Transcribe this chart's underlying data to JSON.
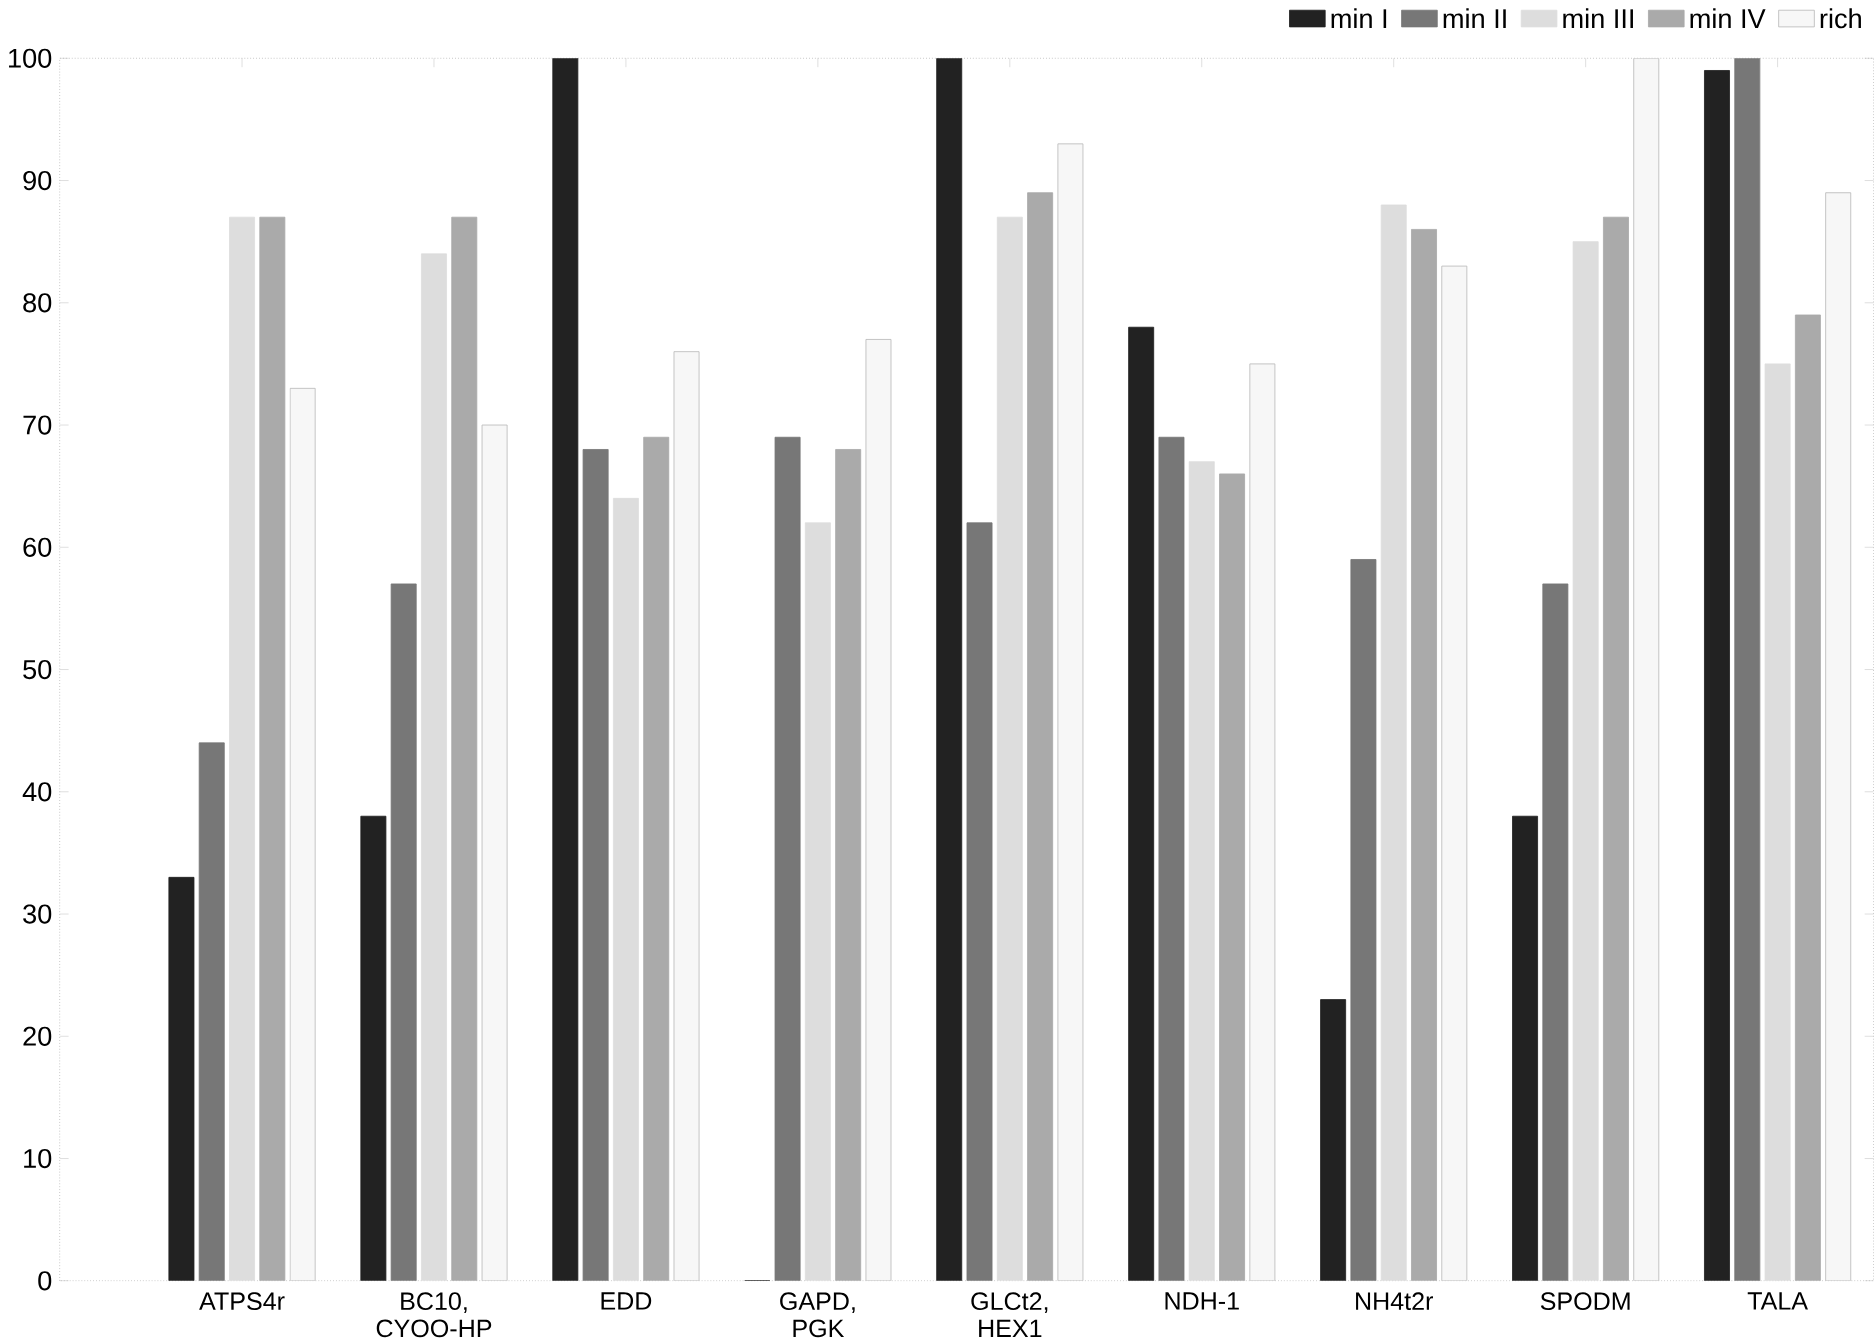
{
  "chart_data": {
    "type": "bar",
    "categories": [
      "ATPS4r",
      "BC10, CYOO-HP",
      "EDD",
      "GAPD, PGK",
      "GLCt2, HEX1",
      "NDH-1",
      "NH4t2r",
      "SPODM",
      "TALA"
    ],
    "series": [
      {
        "name": "min I",
        "color": "#222222",
        "values": [
          33,
          38,
          100,
          0,
          100,
          78,
          23,
          38,
          99
        ]
      },
      {
        "name": "min II",
        "color": "#777777",
        "values": [
          44,
          57,
          68,
          69,
          62,
          69,
          59,
          57,
          100
        ]
      },
      {
        "name": "min III",
        "color": "#dddddd",
        "values": [
          87,
          84,
          64,
          62,
          87,
          67,
          88,
          85,
          75
        ]
      },
      {
        "name": "min IV",
        "color": "#aaaaaa",
        "values": [
          87,
          87,
          69,
          68,
          89,
          66,
          86,
          87,
          79
        ]
      },
      {
        "name": "rich",
        "color": "#f7f7f7",
        "values": [
          73,
          70,
          76,
          77,
          93,
          75,
          83,
          100,
          89
        ]
      }
    ],
    "ylim": [
      0,
      100
    ],
    "yticks": [
      0,
      10,
      20,
      30,
      40,
      50,
      60,
      70,
      80,
      90,
      100
    ],
    "legend": "top right",
    "grid": false
  }
}
